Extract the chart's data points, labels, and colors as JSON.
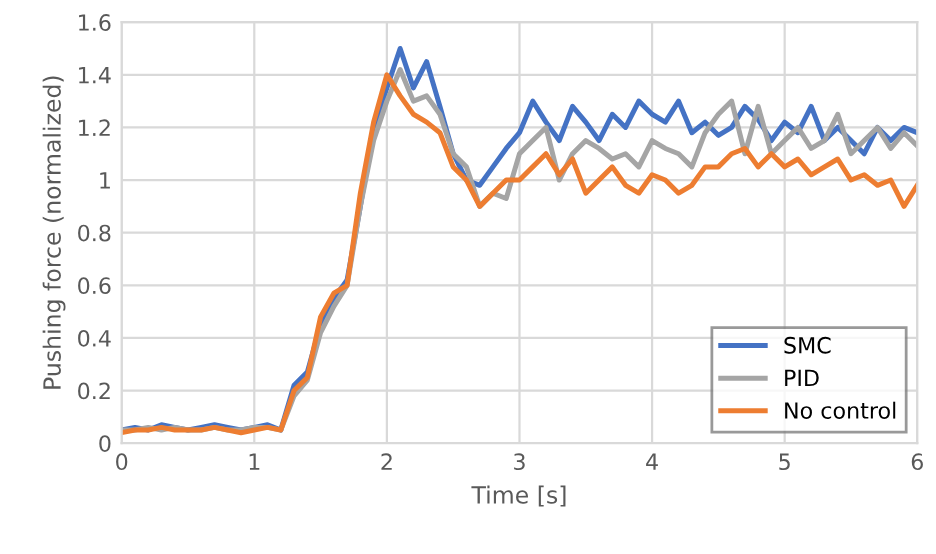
{
  "chart_data": {
    "type": "line",
    "xlabel": "Time [s]",
    "ylabel": "Pushing force (normalized)",
    "x": [
      0,
      0.1,
      0.2,
      0.3,
      0.4,
      0.5,
      0.6,
      0.7,
      0.8,
      0.9,
      1,
      1.1,
      1.2,
      1.3,
      1.4,
      1.5,
      1.6,
      1.7,
      1.8,
      1.9,
      2,
      2.1,
      2.2,
      2.3,
      2.4,
      2.5,
      2.6,
      2.7,
      2.8,
      2.9,
      3,
      3.1,
      3.2,
      3.3,
      3.4,
      3.5,
      3.6,
      3.7,
      3.8,
      3.9,
      4,
      4.1,
      4.2,
      4.3,
      4.4,
      4.5,
      4.6,
      4.7,
      4.8,
      4.9,
      5,
      5.1,
      5.2,
      5.3,
      5.4,
      5.5,
      5.6,
      5.7,
      5.8,
      5.9,
      6
    ],
    "series": [
      {
        "name": "SMC",
        "color": "#4472c4",
        "values": [
          0.05,
          0.06,
          0.05,
          0.07,
          0.06,
          0.05,
          0.06,
          0.07,
          0.06,
          0.05,
          0.06,
          0.07,
          0.05,
          0.22,
          0.27,
          0.45,
          0.55,
          0.62,
          0.9,
          1.2,
          1.35,
          1.5,
          1.35,
          1.45,
          1.28,
          1.1,
          1.0,
          0.98,
          1.05,
          1.12,
          1.18,
          1.3,
          1.22,
          1.15,
          1.28,
          1.22,
          1.15,
          1.25,
          1.2,
          1.3,
          1.25,
          1.22,
          1.3,
          1.18,
          1.22,
          1.17,
          1.2,
          1.28,
          1.23,
          1.15,
          1.22,
          1.18,
          1.28,
          1.15,
          1.2,
          1.15,
          1.1,
          1.2,
          1.15,
          1.2,
          1.18
        ]
      },
      {
        "name": "PID",
        "color": "#a5a5a5",
        "values": [
          0.05,
          0.05,
          0.06,
          0.05,
          0.06,
          0.05,
          0.05,
          0.06,
          0.05,
          0.05,
          0.06,
          0.06,
          0.05,
          0.18,
          0.24,
          0.42,
          0.52,
          0.6,
          0.9,
          1.15,
          1.3,
          1.42,
          1.3,
          1.32,
          1.25,
          1.1,
          1.05,
          0.9,
          0.95,
          0.93,
          1.1,
          1.15,
          1.2,
          1.0,
          1.1,
          1.15,
          1.12,
          1.08,
          1.1,
          1.05,
          1.15,
          1.12,
          1.1,
          1.05,
          1.18,
          1.25,
          1.3,
          1.1,
          1.28,
          1.1,
          1.15,
          1.2,
          1.12,
          1.15,
          1.25,
          1.1,
          1.15,
          1.2,
          1.12,
          1.18,
          1.13
        ]
      },
      {
        "name": "No control",
        "color": "#ed7d31",
        "values": [
          0.04,
          0.05,
          0.05,
          0.06,
          0.05,
          0.05,
          0.05,
          0.06,
          0.05,
          0.04,
          0.05,
          0.06,
          0.05,
          0.2,
          0.25,
          0.48,
          0.57,
          0.6,
          0.95,
          1.22,
          1.4,
          1.32,
          1.25,
          1.22,
          1.18,
          1.05,
          1.0,
          0.9,
          0.95,
          1.0,
          1.0,
          1.05,
          1.1,
          1.02,
          1.08,
          0.95,
          1.0,
          1.05,
          0.98,
          0.95,
          1.02,
          1.0,
          0.95,
          0.98,
          1.05,
          1.05,
          1.1,
          1.12,
          1.05,
          1.1,
          1.05,
          1.08,
          1.02,
          1.05,
          1.08,
          1.0,
          1.02,
          0.98,
          1.0,
          0.9,
          0.98
        ]
      }
    ],
    "xlim": [
      0,
      6
    ],
    "xticks": [
      0,
      1,
      2,
      3,
      4,
      5,
      6
    ],
    "ylim": [
      0,
      1.6
    ],
    "yticks": [
      0,
      0.2,
      0.4,
      0.6,
      0.8,
      1,
      1.2,
      1.4,
      1.6
    ],
    "grid": true,
    "legend": "bottom right",
    "marker": "none",
    "line_style": "solid"
  }
}
